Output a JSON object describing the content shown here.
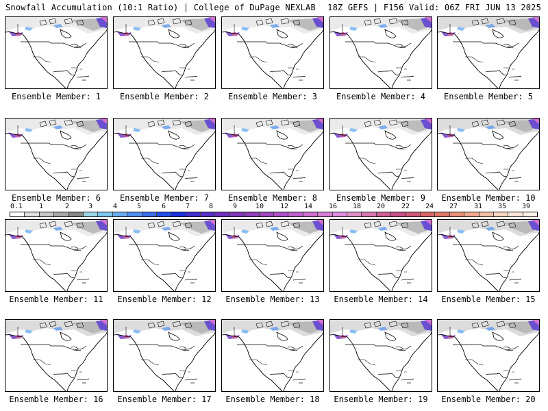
{
  "header": {
    "title_left": "Snowfall Accumulation (10:1 Ratio) | College of DuPage NEXLAB",
    "title_right": "18Z GEFS | F156 Valid: 06Z FRI JUN 13 2025"
  },
  "panels": [
    {
      "label": "Ensemble Member: 1"
    },
    {
      "label": "Ensemble Member: 2"
    },
    {
      "label": "Ensemble Member: 3"
    },
    {
      "label": "Ensemble Member: 4"
    },
    {
      "label": "Ensemble Member: 5"
    },
    {
      "label": "Ensemble Member: 6"
    },
    {
      "label": "Ensemble Member: 7"
    },
    {
      "label": "Ensemble Member: 8"
    },
    {
      "label": "Ensemble Member: 9"
    },
    {
      "label": "Ensemble Member: 10"
    },
    {
      "label": "Ensemble Member: 11"
    },
    {
      "label": "Ensemble Member: 12"
    },
    {
      "label": "Ensemble Member: 13"
    },
    {
      "label": "Ensemble Member: 14"
    },
    {
      "label": "Ensemble Member: 15"
    },
    {
      "label": "Ensemble Member: 16"
    },
    {
      "label": "Ensemble Member: 17"
    },
    {
      "label": "Ensemble Member: 18"
    },
    {
      "label": "Ensemble Member: 19"
    },
    {
      "label": "Ensemble Member: 20"
    }
  ],
  "colorbar": {
    "labels": [
      "0.1",
      "1",
      "2",
      "3",
      "4",
      "5",
      "6",
      "7",
      "8",
      "9",
      "10",
      "12",
      "14",
      "16",
      "18",
      "20",
      "22",
      "24",
      "27",
      "31",
      "35",
      "39"
    ],
    "colors": [
      "#ffffff",
      "#e0e0e0",
      "#c8c8c8",
      "#a8a8a8",
      "#888888",
      "#9fd8e8",
      "#7fc8f0",
      "#6aaef0",
      "#5090f0",
      "#3a70f0",
      "#2050ee",
      "#1a30e0",
      "#3f2fd0",
      "#5a2fc8",
      "#6f30c0",
      "#8038b8",
      "#9040b8",
      "#a048c0",
      "#b050c8",
      "#c060cc",
      "#d070d0",
      "#d880d8",
      "#e08ee0",
      "#e090c8",
      "#d878b0",
      "#d06098",
      "#c85088",
      "#d05878",
      "#d86868",
      "#e07868",
      "#e89078",
      "#f0a890",
      "#f5c0a8",
      "#f8d8c0",
      "#fbe8d8",
      "#fdf3ea"
    ]
  }
}
